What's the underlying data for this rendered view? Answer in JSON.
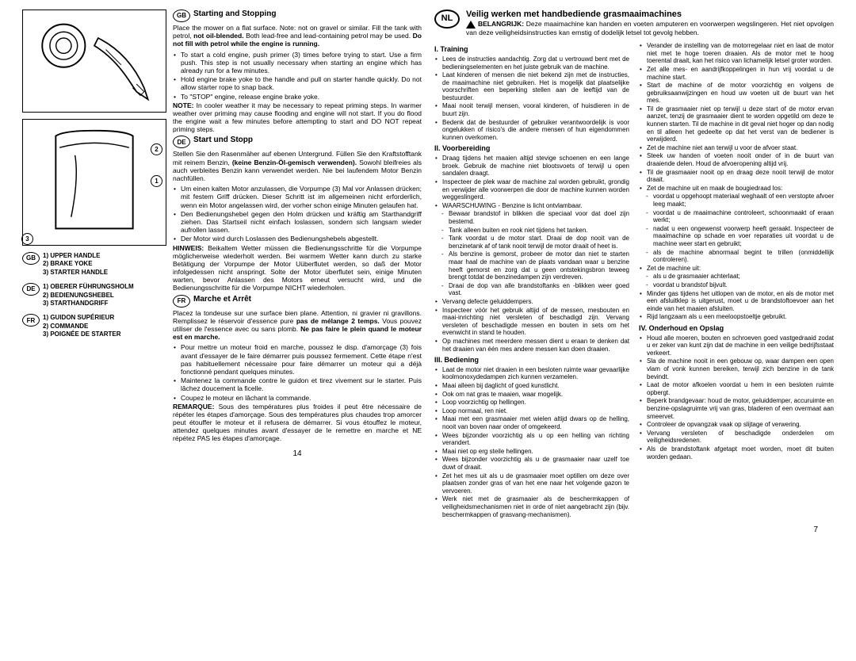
{
  "page_left": {
    "legends": [
      {
        "flag": "GB",
        "lines": [
          "1) UPPER HANDLE",
          "2) BRAKE YOKE",
          "3) STARTER HANDLE"
        ]
      },
      {
        "flag": "DE",
        "lines": [
          "1) OBERER FÜHRUNGSHOLM",
          "2) BEDIENUNGSHEBEL",
          "3) STARTHANDGRIFF"
        ]
      },
      {
        "flag": "FR",
        "lines": [
          "1) GUIDON SUPÉRIEUR",
          "2) COMMANDE",
          "3) POIGNÉE DE STARTER"
        ]
      }
    ],
    "sections": [
      {
        "flag": "GB",
        "title": "Starting and Stopping",
        "intro": "Place the mower on a flat surface. Note: not on gravel or similar. Fill the tank with petrol, ",
        "intro_bold": "not oil-blended.",
        "intro2": " Both lead-free and lead-containing petrol may be used. ",
        "intro2_bold": "Do not fill with petrol while the engine is running.",
        "bullets": [
          "To start a cold engine, push primer (3) times before trying to start. Use a firm push. This step is not usually necessary when starting an engine which has already run for a few minutes.",
          "Hold engine brake yoke to the handle and pull on starter handle quickly. Do not allow starter rope to snap back.",
          "To \"STOP\" engine, release engine brake yoke."
        ],
        "note_label": "NOTE:",
        "note": " In cooler weather it may be necessary to repeat priming steps. In warmer weather over priming may cause flooding and engine will not start. If you do flood the engine wait a few minutes before attempting to start and DO NOT repeat priming steps."
      },
      {
        "flag": "DE",
        "title": "Start und Stopp",
        "intro": "Stellen Sie den Rasenmäher auf ebenen Untergrund. Füllen Sie den Kraftstofftank mit reinem Benzin, ",
        "intro_bold": "(keine Benzin-Öl-gemisch verwenden).",
        "intro2": " Sowohl bleifreies als auch verbleites Benzin kann verwendet werden. Nie bei laufendem Motor Benzin nachfüllen.",
        "intro2_bold": "",
        "bullets": [
          "Um einen kalten Motor anzulassen, die Vorpumpe (3) Mal vor Anlassen drücken; mit festem Griff drücken. Dieser Schritt ist im allgemeinen nicht erforderlich, wenn ein Motor angelassen wird, der vorher schon einige Minuten gelaufen hat.",
          "Den Bedienungshebel gegen den Holm drücken und kräftig am Starthandgriff ziehen. Das Startseil nicht einfach loslassen, sondern sich langsam wieder aufrollen lassen.",
          "Der Motor wird durch Loslassen des Bedienungshebels abgestellt."
        ],
        "note_label": "HINWEIS:",
        "note": " Beikaltem Wetter müssen die Bedienungsschritte für die Vorpumpe möglicherweise wiederholt werden. Bei warmem Wetter kann durch zu starke Betätigung der Vorpumpe der Motor Uüberflutet werden, so daß der Motor infolgedessen nicht anspringt. Solte der Motor überflutet sein, einige Minuten warten, bevor Anlassen des Motors erneut versucht wird, und die Bedienungsschritte für die Vorpumpe NICHT wiederholen."
      },
      {
        "flag": "FR",
        "title": "Marche et Arrêt",
        "intro": "Placez la tondeuse sur une surface bien plane. Attention, ni gravier ni gravillons. Remplissez le réservoir d'essence pure ",
        "intro_bold": "pas de mélange 2 temps.",
        "intro2": " Vous pouvez utiliser de l'essence avec ou sans plomb. ",
        "intro2_bold": "Ne pas faire le plein quand le moteur est en marche.",
        "bullets": [
          "Pour mettre un moteur froid en marche, poussez le disp. d'amorçage (3) fois avant d'essayer de le faire démarrer puis poussez fermement. Cette étape n'est pas habituellement nécessaire pour faire démarrer un moteur qui a déjà fonctionné pendant quelques minutes.",
          "Maintenez la commande contre le guidon et tirez vivement sur le starter. Puis lâchez doucement la ficelle.",
          "Coupez le moteur en lâchant la commande."
        ],
        "note_label": "REMARQUE:",
        "note": " Sous des températures plus froides il peut être nécessaire de répéter les étapes d'amorçage. Sous des températures plus chaudes trop amorcer peut étouffer le moteur et il refusera de démarrer. Si vous étouffez le moteur, attendez quelques minutes avant d'essayer de le remettre en marche et NE répétez PAS les étapes d'amorçage."
      }
    ],
    "page_number": "14"
  },
  "page_right": {
    "flag": "NL",
    "title": "Veilig werken met handbediende grasmaaimachines",
    "belangrijk_label": "BELANGRIJK:",
    "belangrijk": " Deze maaimachine kan handen en voeten amputeren en voorwerpen wegslingeren. Het niet opvolgen van deze veiligheidsinstructies kan ernstig of dodelijk letsel tot gevolg hebben.",
    "col1": {
      "h_training": "I. Training",
      "training_bullets": [
        "Lees de instructies aandachtig. Zorg dat u vertrouwd bent met de bedieningselementen en het juiste gebruik van de machine.",
        "Laat kinderen of mensen die niet bekend zijn met de instructies, de maaimachine niet gebruiken. Het is mogelijk dat plaatselijke voorschriften een beperking stellen aan de leeftijd van de bestuurder.",
        "Maai nooit terwijl mensen, vooral kinderen, of huisdieren in de buurt zijn.",
        "Bedenk dat de bestuurder of gebruiker verantwoordelijk is voor ongelukken of risico's die andere mensen of hun eigendommen kunnen overkomen."
      ],
      "h_voor": "II. Voorbereiding",
      "voor_bullets": [
        "Draag tijdens het maaien altijd stevige schoenen en een lange broek. Gebruik de machine niet blootsvoets of terwijl u open sandalen draagt.",
        "Inspecteer de plek waar de machine zal worden gebruikt, grondig en verwijder alle voorwerpen die door de machine kunnen worden weggeslingerd.",
        "WAARSCHUWING - Benzine is licht ontvlambaar."
      ],
      "voor_sub": [
        "Bewaar brandstof in blikken die speciaal voor dat doel zijn bestemd.",
        "Tank alleen buiten en rook niet tijdens het tanken.",
        "Tank voordat u de motor start. Draai de dop nooit van de benzinetank af of tank nooit terwijl de motor draait of heet is.",
        "Als benzine is gemorst, probeer de motor dan niet te starten maar haal de machine van de plaats vandaan waar u benzine heeft gemorst en zorg dat u geen ontstekingsbron teweeg brengt totdat de benzinedampen zijn verdreven.",
        "Draai de dop van alle brandstoftanks en -blikken weer goed vast."
      ],
      "voor_bullets2": [
        "Vervang defecte geluiddempers.",
        "Inspecteer vóór het gebruik altijd of de messen, mesbouten en maai-inrichting niet versleten of beschadigd zijn. Vervang versleten of beschadigde messen en bouten in sets om het evenwicht in stand te houden.",
        "Op machines met meerdere messen dient u eraan te denken dat het draaien van één mes andere messen kan doen draaien."
      ],
      "h_bed": "III. Bediening",
      "bed_bullets": [
        "Laat de motor niet draaien in een besloten ruimte waar gevaarlijke koolmonoxydedampen zich kunnen verzamelen.",
        "Maai alleen bij daglicht of goed kunstlicht.",
        "Ook om nat gras te maaien, waar mogelijk.",
        "Loop voorzichtig op hellingen.",
        "Loop normaal, ren niet.",
        "Maai met een grasmaaier met wielen altijd dwars op de helling, nooit van boven naar onder of omgekeerd.",
        "Wees bijzonder voorzichtig als u op een helling van richting verandert.",
        "Maai niet op erg steile hellingen.",
        "Wees bijzonder voorzichtig als u de grasmaaier naar uzelf toe duwt of draait.",
        "Zet het mes uit als u de grasmaaier moet optillen om deze over plaatsen zonder gras of van het ene naar het volgende gazon te vervoeren.",
        "Werk niet met de grasmaaier als de beschermkappen of veiligheidsmechanismen niet in orde of niet aangebracht zijn (bijv. beschermkappen of grasvang-mechanismen)."
      ]
    },
    "col2": {
      "bed_cont": [
        "Verander de instelling van de motorregelaar niet en laat de motor niet met te hoge toeren draaien. Als de motor met te hoog toerental draait, kan het risico van lichamelijk letsel groter worden.",
        "Zet alle mes- en aandrijfkoppelingen in hun vrij voordat u de machine start.",
        "Start de machine of de motor voorzichtig en volgens de gebruiksaanwijzingen en houd uw voeten uit de buurt van het mes.",
        "Til de grasmaaier niet op terwijl u deze start of de motor ervan aanzet, tenzij de grasmaaier dient te worden opgetild om deze te kunnen starten. Til de machine in dit geval niet hoger op dan nodig en til alleen het gedeelte op dat het verst van de bediener is verwijderd.",
        "Zet de machine niet aan terwijl u voor de afvoer staat.",
        "Steek uw handen of voeten nooit onder of in de buurt van draaiende delen. Houd de afvoeropening altijd vrij.",
        "Til de grasmaaier nooit op en draag deze nooit terwijl de motor draait.",
        "Zet de machine uit en maak de bougiedraad los:"
      ],
      "sub1": [
        "voordat u opgehoopt materiaal weghaalt of een verstopte afvoer leeg maakt;",
        "voordat u de maaimachine controleert, schoonmaakt of eraan werkt;",
        "nadat u een ongewenst voorwerp heeft geraakt. Inspecteer de maaimachine op schade en voer reparaties uit voordat u de machine weer start en gebruikt;",
        "als de machine abnormaal begint te trillen (onmiddellijk controleren)."
      ],
      "bed_cont2": [
        "Zet de machine uit:"
      ],
      "sub2": [
        "als u de grasmaaier achterlaat;",
        "voordat u brandstof bijvult."
      ],
      "bed_cont3": [
        "Minder gas tijdens het uitlopen van de motor, en als de motor met een afsluitklep is uitgerust, moet u de brandstoftoevoer aan het einde van het maaien afsluiten.",
        "Rijd langzaam als u een meeloopstoeltje gebruikt."
      ],
      "h_onder": "IV. Onderhoud en Opslag",
      "onder_bullets": [
        "Houd alle moeren, bouten en schroeven goed vastgedraaid zodat u er zeker van kunt zijn dat de machine in een veilige bedrijfsstaat verkeert.",
        "Sla de machine nooit in een gebouw op, waar dampen een open vlam of vonk kunnen bereiken, terwijl zich benzine in de tank bevindt.",
        "Laat de motor afkoelen voordat u hem in een besloten ruimte opbergt.",
        "Beperk brandgevaar: houd de motor, geluiddemper, accuruimte en benzine-opslagruimte vrij van gras, bladeren of een overmaat aan smeervet.",
        "Controleer de opvangzak vaak op slijtage of verwering.",
        "Vervang versleten of beschadigde onderdelen om veiligheidsredenen.",
        "Als de brandstoftank afgetapt moet worden, moet dit buiten worden gedaan."
      ]
    },
    "page_number": "7"
  }
}
